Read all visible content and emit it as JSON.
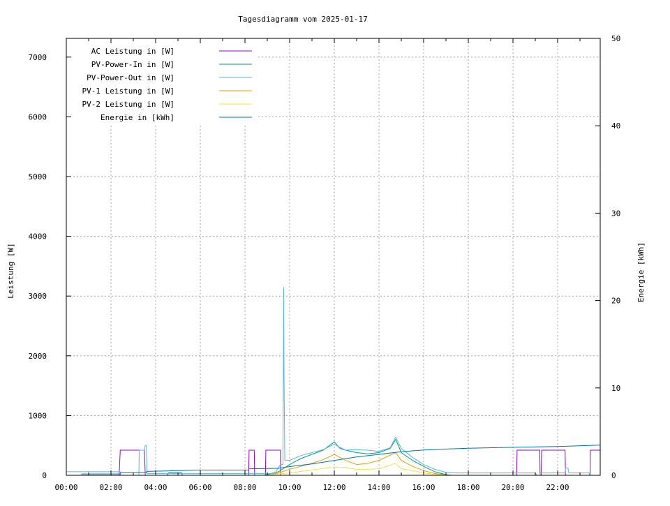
{
  "chart_data": {
    "type": "line",
    "title": "Tagesdiagramm vom 2025-01-17",
    "ylabel": "Leistung [W]",
    "y2label": "Energie [kWh]",
    "xlim": [
      "00:00",
      "23:55"
    ],
    "ylim": [
      0,
      7313
    ],
    "y2lim": [
      0,
      50
    ],
    "xticks": [
      "00:00",
      "02:00",
      "04:00",
      "06:00",
      "08:00",
      "10:00",
      "12:00",
      "14:00",
      "16:00",
      "18:00",
      "20:00",
      "22:00"
    ],
    "yticks": [
      "0",
      "1000",
      "2000",
      "3000",
      "4000",
      "5000",
      "6000",
      "7000"
    ],
    "y2ticks": [
      "0",
      "10",
      "20",
      "30",
      "40",
      "50"
    ],
    "grid": true,
    "legend_position": "top-left",
    "series": [
      {
        "name": "AC Leistung in [W]",
        "color": "#9400d3",
        "axis": "y",
        "points": [
          [
            "00:00",
            0
          ],
          [
            "02:22",
            0
          ],
          [
            "02:25",
            420
          ],
          [
            "03:30",
            420
          ],
          [
            "03:32",
            0
          ],
          [
            "04:30",
            0
          ],
          [
            "04:35",
            40
          ],
          [
            "05:10",
            40
          ],
          [
            "05:12",
            0
          ],
          [
            "08:10",
            0
          ],
          [
            "08:11",
            420
          ],
          [
            "08:25",
            420
          ],
          [
            "08:26",
            0
          ],
          [
            "08:55",
            0
          ],
          [
            "08:56",
            420
          ],
          [
            "09:35",
            420
          ],
          [
            "09:36",
            0
          ],
          [
            "20:10",
            0
          ],
          [
            "20:11",
            420
          ],
          [
            "21:12",
            420
          ],
          [
            "21:13",
            0
          ],
          [
            "21:16",
            0
          ],
          [
            "21:17",
            420
          ],
          [
            "22:20",
            420
          ],
          [
            "22:21",
            0
          ],
          [
            "23:27",
            0
          ],
          [
            "23:28",
            420
          ],
          [
            "23:55",
            420
          ]
        ]
      },
      {
        "name": "PV-Power-In in [W]",
        "color": "#009e73",
        "axis": "y",
        "points": [
          [
            "08:50",
            0
          ],
          [
            "09:30",
            60
          ],
          [
            "10:00",
            180
          ],
          [
            "10:30",
            280
          ],
          [
            "11:00",
            350
          ],
          [
            "11:30",
            420
          ],
          [
            "12:00",
            560
          ],
          [
            "12:15",
            450
          ],
          [
            "12:30",
            420
          ],
          [
            "13:00",
            380
          ],
          [
            "13:30",
            360
          ],
          [
            "14:00",
            380
          ],
          [
            "14:30",
            450
          ],
          [
            "14:45",
            600
          ],
          [
            "15:00",
            380
          ],
          [
            "15:30",
            250
          ],
          [
            "16:00",
            150
          ],
          [
            "16:30",
            60
          ],
          [
            "17:00",
            10
          ],
          [
            "17:15",
            0
          ]
        ]
      },
      {
        "name": "PV-Power-Out in [W]",
        "color": "#56b4e9",
        "axis": "y",
        "points": [
          [
            "00:00",
            60
          ],
          [
            "02:25",
            60
          ],
          [
            "02:26",
            0
          ],
          [
            "03:15",
            0
          ],
          [
            "03:16",
            420
          ],
          [
            "03:30",
            420
          ],
          [
            "03:32",
            500
          ],
          [
            "03:35",
            500
          ],
          [
            "03:37",
            30
          ],
          [
            "09:20",
            30
          ],
          [
            "09:35",
            180
          ],
          [
            "09:42",
            180
          ],
          [
            "09:44",
            3150
          ],
          [
            "09:45",
            1650
          ],
          [
            "09:47",
            250
          ],
          [
            "10:00",
            250
          ],
          [
            "10:30",
            330
          ],
          [
            "11:00",
            380
          ],
          [
            "11:30",
            430
          ],
          [
            "12:00",
            520
          ],
          [
            "12:15",
            470
          ],
          [
            "12:30",
            420
          ],
          [
            "13:00",
            430
          ],
          [
            "13:30",
            420
          ],
          [
            "14:00",
            400
          ],
          [
            "14:30",
            460
          ],
          [
            "14:45",
            640
          ],
          [
            "15:00",
            450
          ],
          [
            "15:30",
            300
          ],
          [
            "16:00",
            180
          ],
          [
            "16:30",
            100
          ],
          [
            "17:00",
            50
          ],
          [
            "17:30",
            40
          ],
          [
            "21:00",
            40
          ],
          [
            "21:05",
            0
          ],
          [
            "21:12",
            0
          ],
          [
            "21:14",
            40
          ],
          [
            "22:20",
            40
          ],
          [
            "22:21",
            120
          ],
          [
            "22:28",
            120
          ],
          [
            "22:30",
            40
          ],
          [
            "23:25",
            40
          ],
          [
            "23:26",
            0
          ],
          [
            "23:55",
            0
          ]
        ]
      },
      {
        "name": "PV-1 Leistung in [W]",
        "color": "#e69f00",
        "axis": "y",
        "points": [
          [
            "09:00",
            0
          ],
          [
            "09:30",
            40
          ],
          [
            "10:00",
            100
          ],
          [
            "10:30",
            150
          ],
          [
            "11:00",
            200
          ],
          [
            "11:30",
            260
          ],
          [
            "12:00",
            350
          ],
          [
            "12:30",
            250
          ],
          [
            "13:00",
            180
          ],
          [
            "13:30",
            200
          ],
          [
            "14:00",
            250
          ],
          [
            "14:45",
            380
          ],
          [
            "15:00",
            250
          ],
          [
            "15:30",
            150
          ],
          [
            "16:00",
            80
          ],
          [
            "16:30",
            30
          ],
          [
            "17:00",
            5
          ],
          [
            "17:10",
            0
          ]
        ]
      },
      {
        "name": "PV-2 Leistung in [W]",
        "color": "#f0e442",
        "axis": "y",
        "points": [
          [
            "09:00",
            5
          ],
          [
            "10:00",
            40
          ],
          [
            "11:00",
            90
          ],
          [
            "12:00",
            140
          ],
          [
            "12:30",
            130
          ],
          [
            "13:00",
            100
          ],
          [
            "13:30",
            100
          ],
          [
            "14:00",
            110
          ],
          [
            "14:45",
            200
          ],
          [
            "15:00",
            110
          ],
          [
            "15:30",
            80
          ],
          [
            "16:00",
            40
          ],
          [
            "16:30",
            15
          ],
          [
            "17:00",
            0
          ]
        ]
      },
      {
        "name": "Energie in [kWh]",
        "color": "#0072b2",
        "axis": "y2",
        "points": [
          [
            "00:40",
            0.15
          ],
          [
            "02:25",
            0.15
          ],
          [
            "02:26",
            0.3
          ],
          [
            "03:35",
            0.3
          ],
          [
            "03:36",
            0.45
          ],
          [
            "04:30",
            0.5
          ],
          [
            "06:00",
            0.6
          ],
          [
            "08:10",
            0.6
          ],
          [
            "08:11",
            0.75
          ],
          [
            "09:30",
            0.8
          ],
          [
            "10:00",
            1.0
          ],
          [
            "11:00",
            1.3
          ],
          [
            "12:00",
            1.7
          ],
          [
            "13:00",
            2.1
          ],
          [
            "14:00",
            2.4
          ],
          [
            "15:00",
            2.7
          ],
          [
            "16:00",
            2.9
          ],
          [
            "17:00",
            3.0
          ],
          [
            "18:00",
            3.1
          ],
          [
            "20:00",
            3.2
          ],
          [
            "22:00",
            3.3
          ],
          [
            "23:55",
            3.45
          ]
        ]
      }
    ]
  }
}
